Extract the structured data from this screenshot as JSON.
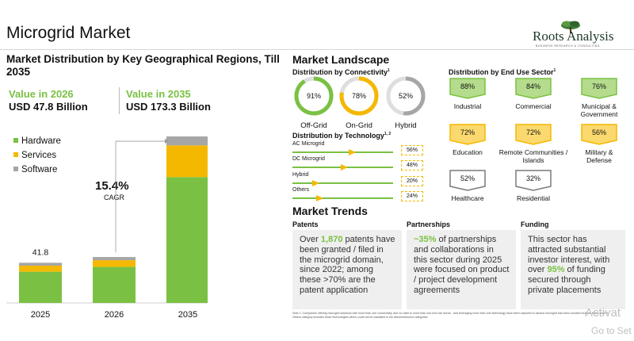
{
  "title": "Microgrid Market",
  "logo": {
    "name": "Roots Analysis",
    "tagline": "BUSINESS RESEARCH & CONSULTING"
  },
  "left": {
    "heading": "Market Distribution by Key Geographical Regions, Till 2035",
    "value_2026_label": "Value in 2026",
    "value_2026_amount": "USD 47.8 Billion",
    "value_2035_label": "Value in 2035",
    "value_2035_amount": "USD 173.3 Billion",
    "cagr_value": "15.4%",
    "cagr_label": "CAGR"
  },
  "colors": {
    "hardware": "#7ac143",
    "services": "#f5b800",
    "software": "#a6a6a6",
    "accent": "#7ac143"
  },
  "chart_data": {
    "type": "bar",
    "stacked": true,
    "categories": [
      "2025",
      "2026",
      "2035"
    ],
    "series": [
      {
        "name": "Hardware",
        "values": [
          32.5,
          37.5,
          131.0
        ]
      },
      {
        "name": "Services",
        "values": [
          6.3,
          7.0,
          33.0
        ]
      },
      {
        "name": "Software",
        "values": [
          3.0,
          3.3,
          9.3
        ]
      }
    ],
    "data_labels": [
      "41.8",
      "",
      ""
    ],
    "ylim": [
      0,
      175
    ],
    "legend": "top-left",
    "annotation": "15.4% CAGR"
  },
  "landscape": {
    "title": "Market Landscape",
    "connectivity_title": "Distribution by Connectivity",
    "connectivity_sup": "1",
    "connectivity": [
      {
        "label": "Off-Grid",
        "value": "91%",
        "fraction": 0.91,
        "color": "#7ac143"
      },
      {
        "label": "On-Grid",
        "value": "78%",
        "fraction": 0.78,
        "color": "#f5b800"
      },
      {
        "label": "Hybrid",
        "value": "52%",
        "fraction": 0.52,
        "color": "#a6a6a6"
      }
    ],
    "technology_title": "Distribution by Technology",
    "technology_sup": "1, 2",
    "technology": [
      {
        "label": "AC Microgrid",
        "value": "56%",
        "fraction": 0.56
      },
      {
        "label": "DC Microgrid",
        "value": "48%",
        "fraction": 0.48
      },
      {
        "label": "Hybrid",
        "value": "20%",
        "fraction": 0.2
      },
      {
        "label": "Others",
        "value": "24%",
        "fraction": 0.24
      }
    ],
    "end_use_title": "Distribution by End Use Sector",
    "end_use_sup": "1",
    "end_use": [
      {
        "label": "Industrial",
        "value": "88%",
        "fill": "#b4dc8c",
        "stroke": "#7ac143"
      },
      {
        "label": "Commercial",
        "value": "84%",
        "fill": "#b4dc8c",
        "stroke": "#7ac143"
      },
      {
        "label": "Municipal & Government",
        "value": "76%",
        "fill": "#b4dc8c",
        "stroke": "#7ac143"
      },
      {
        "label": "Education",
        "value": "72%",
        "fill": "#fbd96e",
        "stroke": "#f5b800"
      },
      {
        "label": "Remote Communities / Islands",
        "value": "72%",
        "fill": "#fbd96e",
        "stroke": "#f5b800"
      },
      {
        "label": "Military & Defense",
        "value": "56%",
        "fill": "#fbd96e",
        "stroke": "#f5b800"
      },
      {
        "label": "Healthcare",
        "value": "52%",
        "fill": "#ffffff",
        "stroke": "#7a7a7a"
      },
      {
        "label": "Residential",
        "value": "32%",
        "fill": "#ffffff",
        "stroke": "#7a7a7a"
      }
    ]
  },
  "trends": {
    "title": "Market Trends",
    "patents": {
      "heading": "Patents",
      "t1": "Over ",
      "h1": "1,870",
      "t2": " patents have been granted / filed in the microgrid domain, since 2022; among these >70% are the patent application"
    },
    "partnerships": {
      "heading": "Partnerships",
      "h1": "~35%",
      "t1": " of partnerships and collaborations in this sector during 2025 were focused on product / project development agreements"
    },
    "funding": {
      "heading": "Funding",
      "t1": "This sector has attracted substantial investor interest, with over ",
      "h1": "95%",
      "t2": " of funding secured through private placements"
    }
  },
  "note": "Note 1: Companies offering microgrid solutions with more than one connectivity and /or cater to more than one end use sector , and leveraging more than one technology have been captured in various microgrid has been counted multiple times Note 2: Others category includes those technologies which could not be classified in the aforementioned categories",
  "watermark": {
    "line1": "Activat",
    "line2": "Go to Set"
  }
}
